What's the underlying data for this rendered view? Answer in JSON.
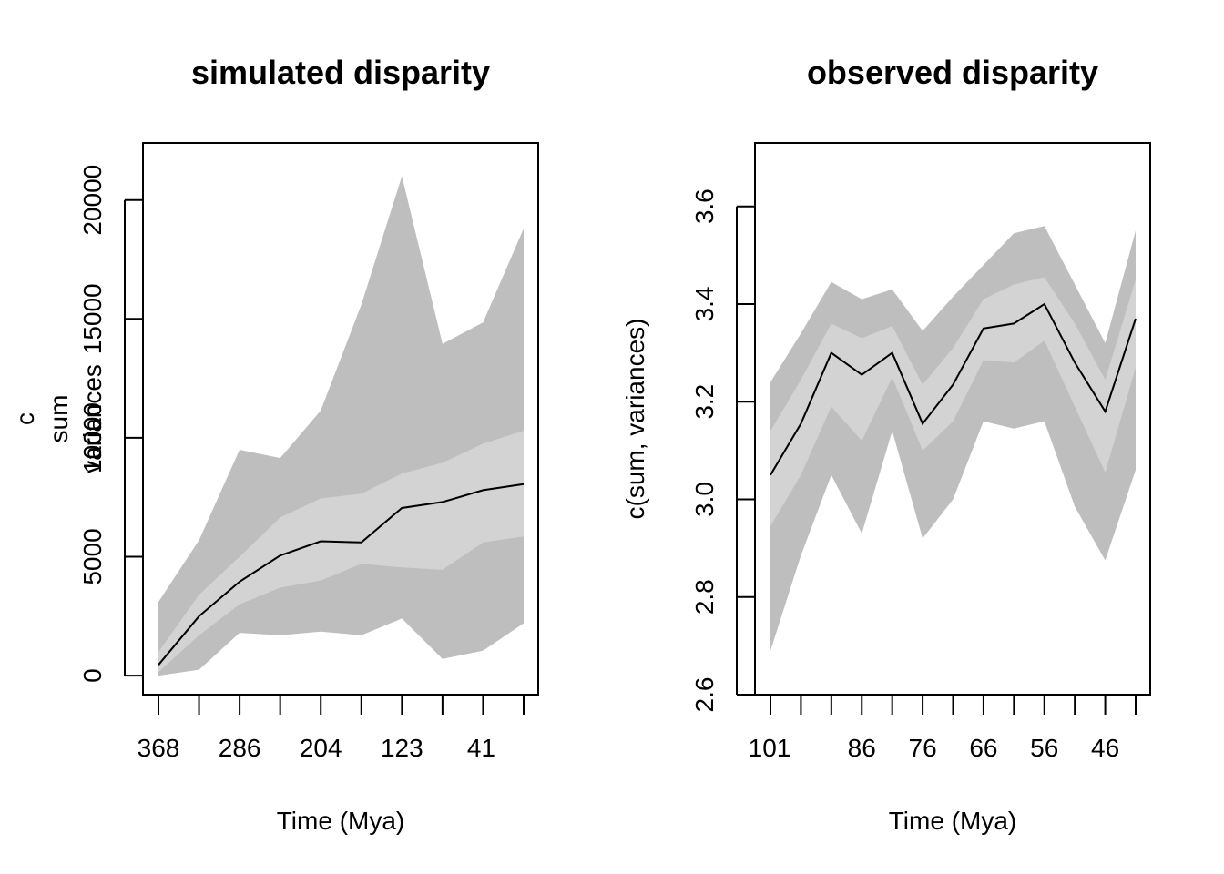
{
  "colors": {
    "outer_band": "#bebebe",
    "inner_band": "#d3d3d3",
    "line": "#000000",
    "axis": "#000000",
    "background": "#ffffff"
  },
  "chart_data": [
    {
      "type": "area",
      "title": "simulated disparity",
      "xlabel": "Time (Mya)",
      "ylabel_lines": [
        "c",
        "sum",
        "variances"
      ],
      "ylabel_tick_overlap": "10000",
      "ylim": [
        -800,
        22400
      ],
      "y_ticks": [
        0,
        5000,
        15000,
        20000
      ],
      "x_ticks": [
        368,
        327,
        286,
        245,
        204,
        164,
        123,
        82,
        41,
        0
      ],
      "x_tick_labels": [
        "368",
        "",
        "286",
        "",
        "204",
        "",
        "123",
        "",
        "41",
        ""
      ],
      "x_label_at_tick_mark": [
        true,
        false,
        true,
        false,
        true,
        false,
        true,
        false,
        true,
        false
      ],
      "x": [
        368,
        327,
        286,
        245,
        204,
        164,
        123,
        82,
        41,
        0
      ],
      "series": [
        {
          "role": "lower_95",
          "values": [
            0,
            250,
            1800,
            1700,
            1850,
            1700,
            2400,
            700,
            1050,
            2200
          ]
        },
        {
          "role": "lower_50",
          "values": [
            150,
            1700,
            3000,
            3700,
            4000,
            4700,
            4550,
            4450,
            5600,
            5850
          ]
        },
        {
          "role": "central",
          "values": [
            450,
            2500,
            3950,
            5050,
            5650,
            5600,
            7050,
            7300,
            7800,
            8050
          ]
        },
        {
          "role": "upper_50",
          "values": [
            1000,
            3400,
            5000,
            6650,
            7450,
            7650,
            8500,
            8950,
            9750,
            10300
          ]
        },
        {
          "role": "upper_95",
          "values": [
            3100,
            5700,
            9500,
            9150,
            11150,
            15600,
            21000,
            13950,
            14850,
            18800
          ]
        }
      ]
    },
    {
      "type": "area",
      "title": "observed disparity",
      "xlabel": "Time (Mya)",
      "ylabel": "c(sum, variances)",
      "ylim": [
        2.6,
        3.73
      ],
      "y_ticks": [
        2.6,
        2.8,
        3.0,
        3.2,
        3.4,
        3.6
      ],
      "y_tick_labels": [
        "2.6",
        "2.8",
        "3.0",
        "3.2",
        "3.4",
        "3.6"
      ],
      "x_ticks": [
        101,
        96,
        91,
        86,
        81,
        76,
        71,
        66,
        61,
        56,
        51,
        46,
        41
      ],
      "x_tick_labels": [
        "101",
        "",
        "",
        "86",
        "",
        "76",
        "",
        "66",
        "",
        "56",
        "",
        "46",
        ""
      ],
      "x_label_at_tick_mark": [
        true,
        false,
        false,
        true,
        false,
        true,
        false,
        true,
        false,
        true,
        false,
        true,
        false
      ],
      "x": [
        101,
        96,
        91,
        86,
        81,
        76,
        71,
        66,
        61,
        56,
        51,
        46,
        41
      ],
      "series": [
        {
          "role": "lower_95",
          "values": [
            2.69,
            2.885,
            3.05,
            2.93,
            3.14,
            2.92,
            3.0,
            3.16,
            3.145,
            3.16,
            2.985,
            2.875,
            3.06
          ]
        },
        {
          "role": "lower_50",
          "values": [
            2.945,
            3.05,
            3.19,
            3.12,
            3.25,
            3.1,
            3.16,
            3.285,
            3.28,
            3.325,
            3.19,
            3.055,
            3.27
          ]
        },
        {
          "role": "central",
          "values": [
            3.05,
            3.155,
            3.3,
            3.255,
            3.3,
            3.155,
            3.235,
            3.35,
            3.36,
            3.4,
            3.28,
            3.18,
            3.37
          ]
        },
        {
          "role": "upper_50",
          "values": [
            3.14,
            3.245,
            3.36,
            3.33,
            3.355,
            3.235,
            3.31,
            3.41,
            3.44,
            3.455,
            3.36,
            3.245,
            3.45
          ]
        },
        {
          "role": "upper_95",
          "values": [
            3.24,
            3.34,
            3.445,
            3.41,
            3.43,
            3.345,
            3.415,
            3.48,
            3.545,
            3.56,
            3.44,
            3.32,
            3.55
          ]
        }
      ]
    }
  ]
}
